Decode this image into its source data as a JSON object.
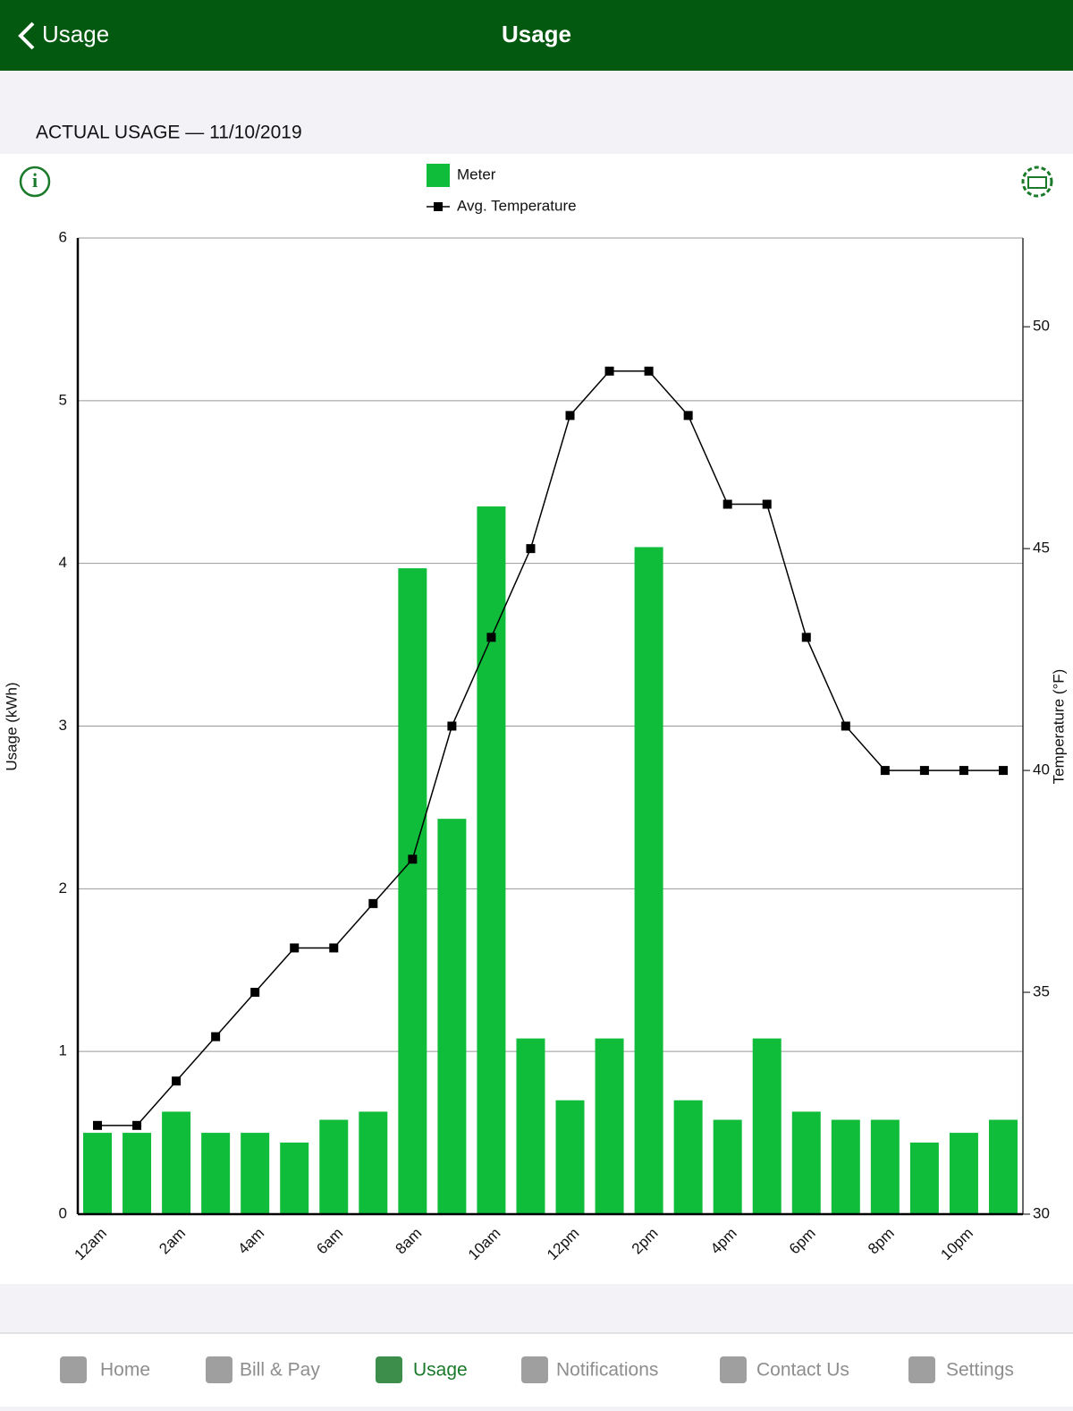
{
  "header": {
    "back": "Usage",
    "title": "Usage"
  },
  "section_title": "ACTUAL USAGE — 11/10/2019",
  "chart_data": {
    "type": "bar",
    "categories": [
      "12am",
      null,
      "2am",
      null,
      "4am",
      null,
      "6am",
      null,
      "8am",
      null,
      "10am",
      null,
      "12pm",
      null,
      "2pm",
      null,
      "4pm",
      null,
      "6pm",
      null,
      "8pm",
      null,
      "10pm",
      null
    ],
    "series": [
      {
        "name": "Meter",
        "type": "bar",
        "color": "#10bd3a",
        "values": [
          0.5,
          0.5,
          0.63,
          0.5,
          0.5,
          0.44,
          0.58,
          0.63,
          3.97,
          2.43,
          4.35,
          1.08,
          0.7,
          1.08,
          4.1,
          0.7,
          0.58,
          1.08,
          0.63,
          0.58,
          0.58,
          0.44,
          0.5,
          0.58
        ]
      },
      {
        "name": "Avg. Temperature",
        "type": "line",
        "axis": "y2",
        "color": "#000000",
        "values": [
          32,
          32,
          33,
          34,
          35,
          36,
          36,
          37,
          38,
          41,
          43,
          45,
          48,
          49,
          49,
          48,
          46,
          46,
          43,
          41,
          40,
          40,
          40,
          40
        ]
      }
    ],
    "ylabel": "Usage (kWh)",
    "y2label": "Temperature (°F)",
    "ylim": [
      0,
      6
    ],
    "yticks": [
      0,
      1,
      2,
      3,
      4,
      5,
      6
    ],
    "y2lim": [
      30,
      52
    ],
    "y2ticks": [
      30,
      35,
      40,
      45,
      50
    ],
    "grid": true
  },
  "tabs": [
    "Home",
    "Bill & Pay",
    "Usage",
    "Notifications",
    "Contact Us",
    "Settings"
  ],
  "active_tab": 2
}
